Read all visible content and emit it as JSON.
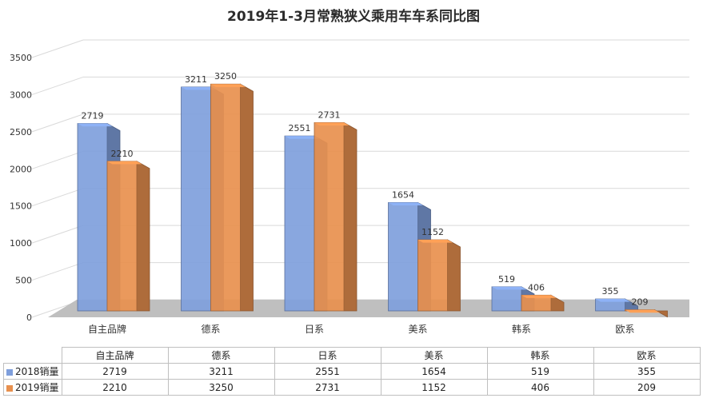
{
  "chart_data": {
    "type": "bar",
    "title": "2019年1-3月常熟狭义乘用车车系同比图",
    "categories": [
      "自主品牌",
      "德系",
      "日系",
      "美系",
      "韩系",
      "欧系"
    ],
    "series": [
      {
        "name": "2018销量",
        "values": [
          2719,
          3211,
          2551,
          1654,
          519,
          355
        ],
        "color": "#7f9fdc"
      },
      {
        "name": "2019销量",
        "values": [
          2210,
          3250,
          2731,
          1152,
          406,
          209
        ],
        "color": "#e8904e"
      }
    ],
    "yticks": [
      "0",
      "500",
      "1000",
      "1500",
      "2000",
      "2500",
      "3000",
      "3500"
    ],
    "ylim": [
      0,
      3500
    ],
    "grid": true,
    "legend": "table"
  }
}
